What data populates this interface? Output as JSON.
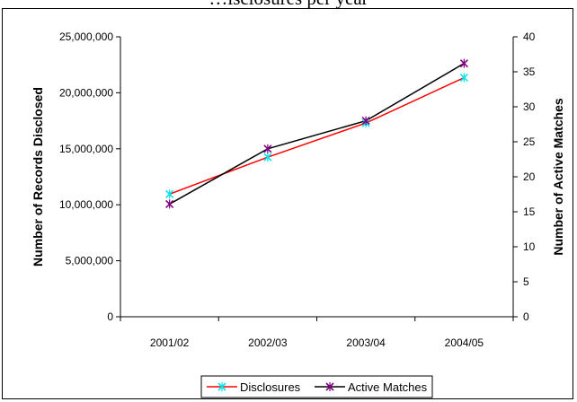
{
  "chart_data": {
    "type": "line",
    "title_fragment": "…isclosures per year",
    "categories": [
      "2001/02",
      "2002/03",
      "2003/04",
      "2004/05"
    ],
    "series": [
      {
        "name": "Disclosures",
        "axis": "left",
        "color": "#ff0000",
        "marker_color": "#00e5ee",
        "values": [
          10950000,
          14250000,
          17300000,
          21350000
        ]
      },
      {
        "name": "Active Matches",
        "axis": "right",
        "color": "#000000",
        "marker_color": "#800080",
        "values": [
          16.1,
          24,
          28,
          36.2
        ]
      }
    ],
    "y_left": {
      "label": "Number of Records Disclosed",
      "range": [
        0,
        25000000
      ],
      "ticks": [
        "0",
        "5,000,000",
        "10,000,000",
        "15,000,000",
        "20,000,000",
        "25,000,000"
      ],
      "tick_values": [
        0,
        5000000,
        10000000,
        15000000,
        20000000,
        25000000
      ]
    },
    "y_right": {
      "label": "Number of Active Matches",
      "range": [
        0,
        40
      ],
      "ticks": [
        "0",
        "5",
        "10",
        "15",
        "20",
        "25",
        "30",
        "35",
        "40"
      ],
      "tick_values": [
        0,
        5,
        10,
        15,
        20,
        25,
        30,
        35,
        40
      ]
    },
    "grid": false,
    "legend_position": "bottom"
  }
}
